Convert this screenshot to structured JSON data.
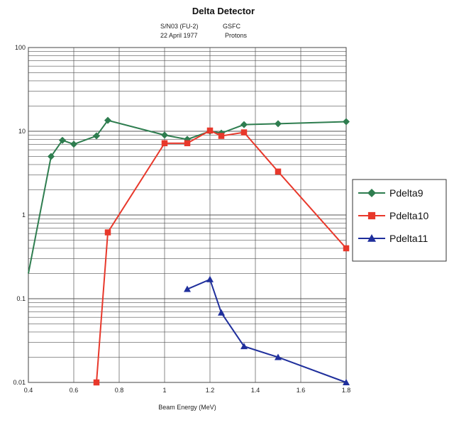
{
  "chart_data": {
    "type": "line",
    "title": "Delta Detector",
    "subtitle_lines": [
      [
        "S/N03 (FU-2)",
        "GSFC"
      ],
      [
        "22 April 1977",
        "Protons"
      ]
    ],
    "xlabel": "Beam Energy (MeV)",
    "ylabel": "",
    "xlim": [
      0.4,
      1.8
    ],
    "ylim": [
      0.01,
      100
    ],
    "y_scale": "log",
    "x_ticks": [
      "0.4",
      "0.6",
      "0.8",
      "1",
      "1.2",
      "1.4",
      "1.6",
      "1.8"
    ],
    "y_ticks": [
      "0.01",
      "0.1",
      "1",
      "10",
      "100"
    ],
    "grid": true,
    "legend_position": "right",
    "series": [
      {
        "name": "Pdelta9",
        "color": "#2e7d4f",
        "marker": "diamond",
        "x": [
          0.4,
          0.5,
          0.55,
          0.6,
          0.7,
          0.75,
          1.0,
          1.1,
          1.2,
          1.25,
          1.35,
          1.5,
          1.8
        ],
        "y": [
          0.2,
          5.0,
          7.8,
          7.0,
          8.8,
          13.5,
          9.0,
          8.0,
          10.0,
          9.5,
          12.0,
          12.3,
          13.0
        ],
        "markers_from_index": 1
      },
      {
        "name": "Pdelta10",
        "color": "#e8382b",
        "marker": "square",
        "x": [
          0.7,
          0.75,
          1.0,
          1.1,
          1.2,
          1.25,
          1.35,
          1.5,
          1.8
        ],
        "y": [
          0.01,
          0.62,
          7.2,
          7.2,
          10.2,
          8.8,
          9.7,
          3.3,
          0.4
        ],
        "markers_from_index": 0
      },
      {
        "name": "Pdelta11",
        "color": "#1f2f9c",
        "marker": "triangle",
        "x": [
          1.1,
          1.2,
          1.25,
          1.35,
          1.5,
          1.8
        ],
        "y": [
          0.13,
          0.17,
          0.068,
          0.027,
          0.02,
          0.01
        ],
        "markers_from_index": 0
      }
    ]
  }
}
